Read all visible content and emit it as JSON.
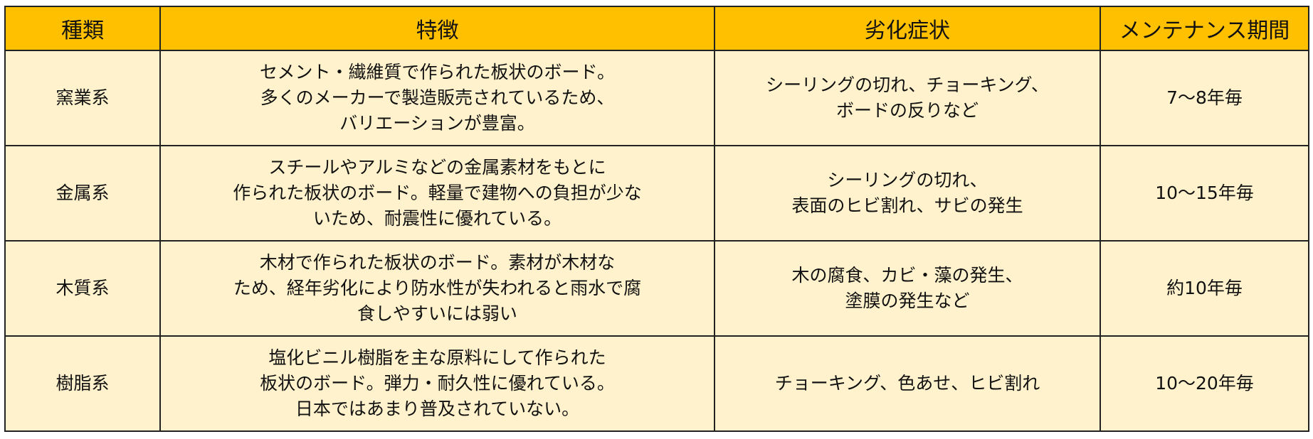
{
  "colors": {
    "header_bg": "#ffc000",
    "cell_bg": "#fff2cc",
    "border": "#222222"
  },
  "headers": [
    "種類",
    "特徴",
    "劣化症状",
    "メンテナンス期間"
  ],
  "rows": [
    {
      "type": "窯業系",
      "features": [
        "セメント・繊維質で作られた板状のボード。",
        "多くのメーカーで製造販売されているため、",
        "バリエーションが豊富。"
      ],
      "symptoms": [
        "シーリングの切れ、チョーキング、",
        "ボードの反りなど"
      ],
      "period": "7～8年毎"
    },
    {
      "type": "金属系",
      "features": [
        "スチールやアルミなどの金属素材をもとに",
        "作られた板状のボード。軽量で建物への負担が少な",
        "いため、耐震性に優れている。"
      ],
      "symptoms": [
        "シーリングの切れ、",
        "表面のヒビ割れ、サビの発生"
      ],
      "period": "10～15年毎"
    },
    {
      "type": "木質系",
      "features": [
        "木材で作られた板状のボード。素材が木材な",
        "ため、経年劣化により防水性が失われると雨水で腐",
        "食しやすいには弱い"
      ],
      "symptoms": [
        "木の腐食、カビ・藻の発生、",
        "塗膜の発生など"
      ],
      "period": "約10年毎"
    },
    {
      "type": "樹脂系",
      "features": [
        "塩化ビニル樹脂を主な原料にして作られた",
        "板状のボード。弾力・耐久性に優れている。",
        "日本ではあまり普及されていない。"
      ],
      "symptoms": [
        "チョーキング、色あせ、ヒビ割れ"
      ],
      "period": "10～20年毎"
    }
  ]
}
